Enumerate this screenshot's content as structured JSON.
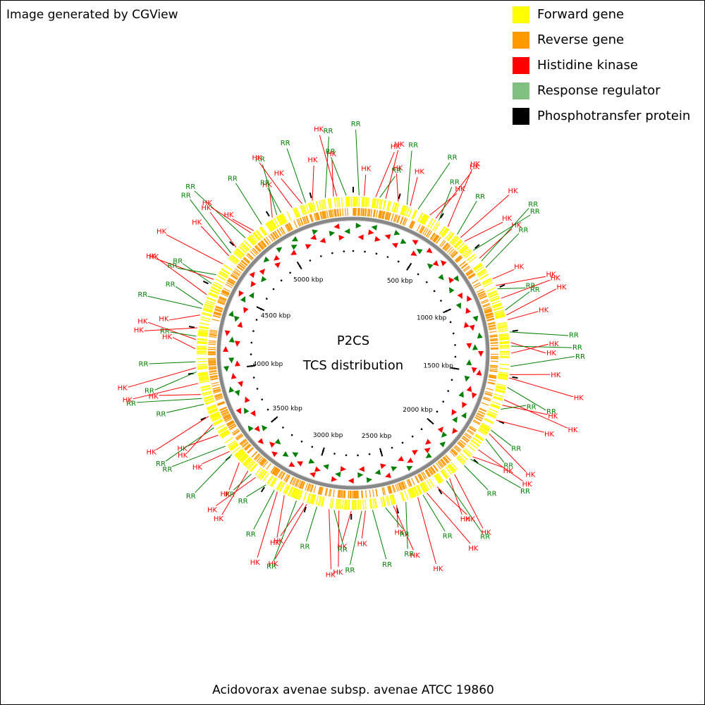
{
  "header": {
    "title": "Image generated by CGView"
  },
  "legend": [
    {
      "label": "Forward gene",
      "color": "#ffff00"
    },
    {
      "label": "Reverse gene",
      "color": "#ff9900"
    },
    {
      "label": "Histidine kinase",
      "color": "#ff0000"
    },
    {
      "label": "Response regulator",
      "color": "#80c080"
    },
    {
      "label": "Phosphotransfer protein",
      "color": "#000000"
    }
  ],
  "center": [
    "P2CS",
    "TCS distribution"
  ],
  "ruler_labels": [
    "500 kbp",
    "1000 kbp",
    "1500 kbp",
    "2000 kbp",
    "2500 kbp",
    "3000 kbp",
    "3500 kbp",
    "4000 kbp",
    "4500 kbp",
    "5000 kbp"
  ],
  "features": [
    "HK",
    "HK",
    "RR",
    "HK",
    "HK",
    "RR",
    "HK",
    "RR",
    "HK",
    "HK",
    "RR",
    "HK",
    "RR",
    "HK",
    "HK",
    "RR",
    "HK",
    "RR",
    "RR",
    "HK",
    "HK",
    "RR",
    "HK",
    "RR",
    "HK",
    "HK",
    "RR",
    "HK",
    "RR",
    "HK",
    "RR",
    "HK",
    "HK",
    "RR",
    "HK",
    "HK",
    "RR",
    "HK",
    "RR",
    "HK",
    "RR",
    "HK",
    "HK",
    "RR",
    "RR",
    "HK",
    "HK",
    "RR",
    "HK",
    "HK",
    "RR",
    "HK",
    "RR",
    "HK",
    "HK",
    "RR",
    "RR",
    "HK",
    "RR",
    "HK",
    "HK",
    "RR",
    "HK",
    "RR",
    "HK",
    "HK",
    "RR",
    "HK",
    "HK",
    "RR",
    "RR",
    "HK",
    "RR",
    "HK",
    "HK",
    "RR",
    "HK",
    "RR",
    "HK",
    "RR",
    "HK",
    "HK",
    "RR",
    "RR",
    "HK",
    "HK",
    "RR",
    "HK",
    "RR",
    "HK",
    "HK",
    "RR",
    "HK",
    "HK",
    "RR",
    "RR",
    "HK",
    "RR",
    "HK",
    "RR",
    "HK",
    "HK",
    "RR",
    "HK",
    "RR",
    "HK",
    "HK",
    "RR",
    "HK",
    "RR",
    "RR",
    "HK",
    "HK",
    "RR",
    "HK",
    "RR",
    "HK",
    "HK",
    "RR",
    "RR"
  ],
  "footer": "Acidovorax avenae subsp. avenae ATCC 19860"
}
